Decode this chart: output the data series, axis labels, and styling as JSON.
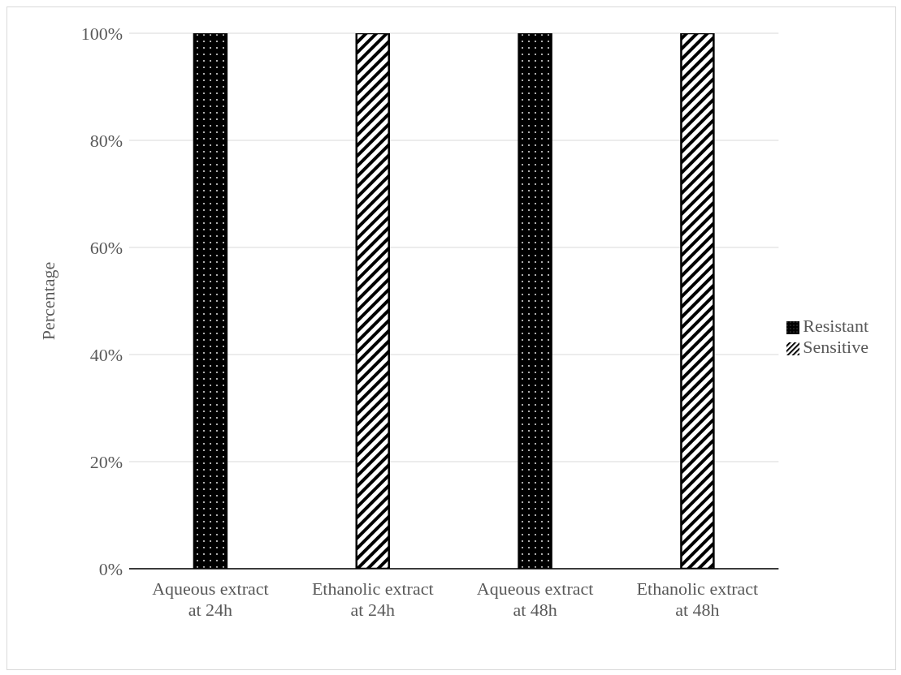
{
  "chart_data": {
    "type": "bar",
    "stacked": true,
    "ylabel": "Percentage",
    "categories": [
      "Aqueous extract at 24h",
      "Ethanolic extract at 24h",
      "Aqueous extract at 48h",
      "Ethanolic extract at 48h"
    ],
    "series": [
      {
        "name": "Resistant",
        "color": "#000000",
        "values": [
          100,
          0,
          100,
          0
        ]
      },
      {
        "name": "Sensitive",
        "color": "#000000",
        "values": [
          0,
          100,
          0,
          100
        ]
      }
    ],
    "ylim": [
      0,
      100
    ],
    "yticks": [
      {
        "value": 0,
        "label": "0%"
      },
      {
        "value": 20,
        "label": "20%"
      },
      {
        "value": 40,
        "label": "40%"
      },
      {
        "value": 60,
        "label": "60%"
      },
      {
        "value": 80,
        "label": "80%"
      },
      {
        "value": 100,
        "label": "100%"
      }
    ],
    "grid": "y",
    "legend": "right"
  }
}
